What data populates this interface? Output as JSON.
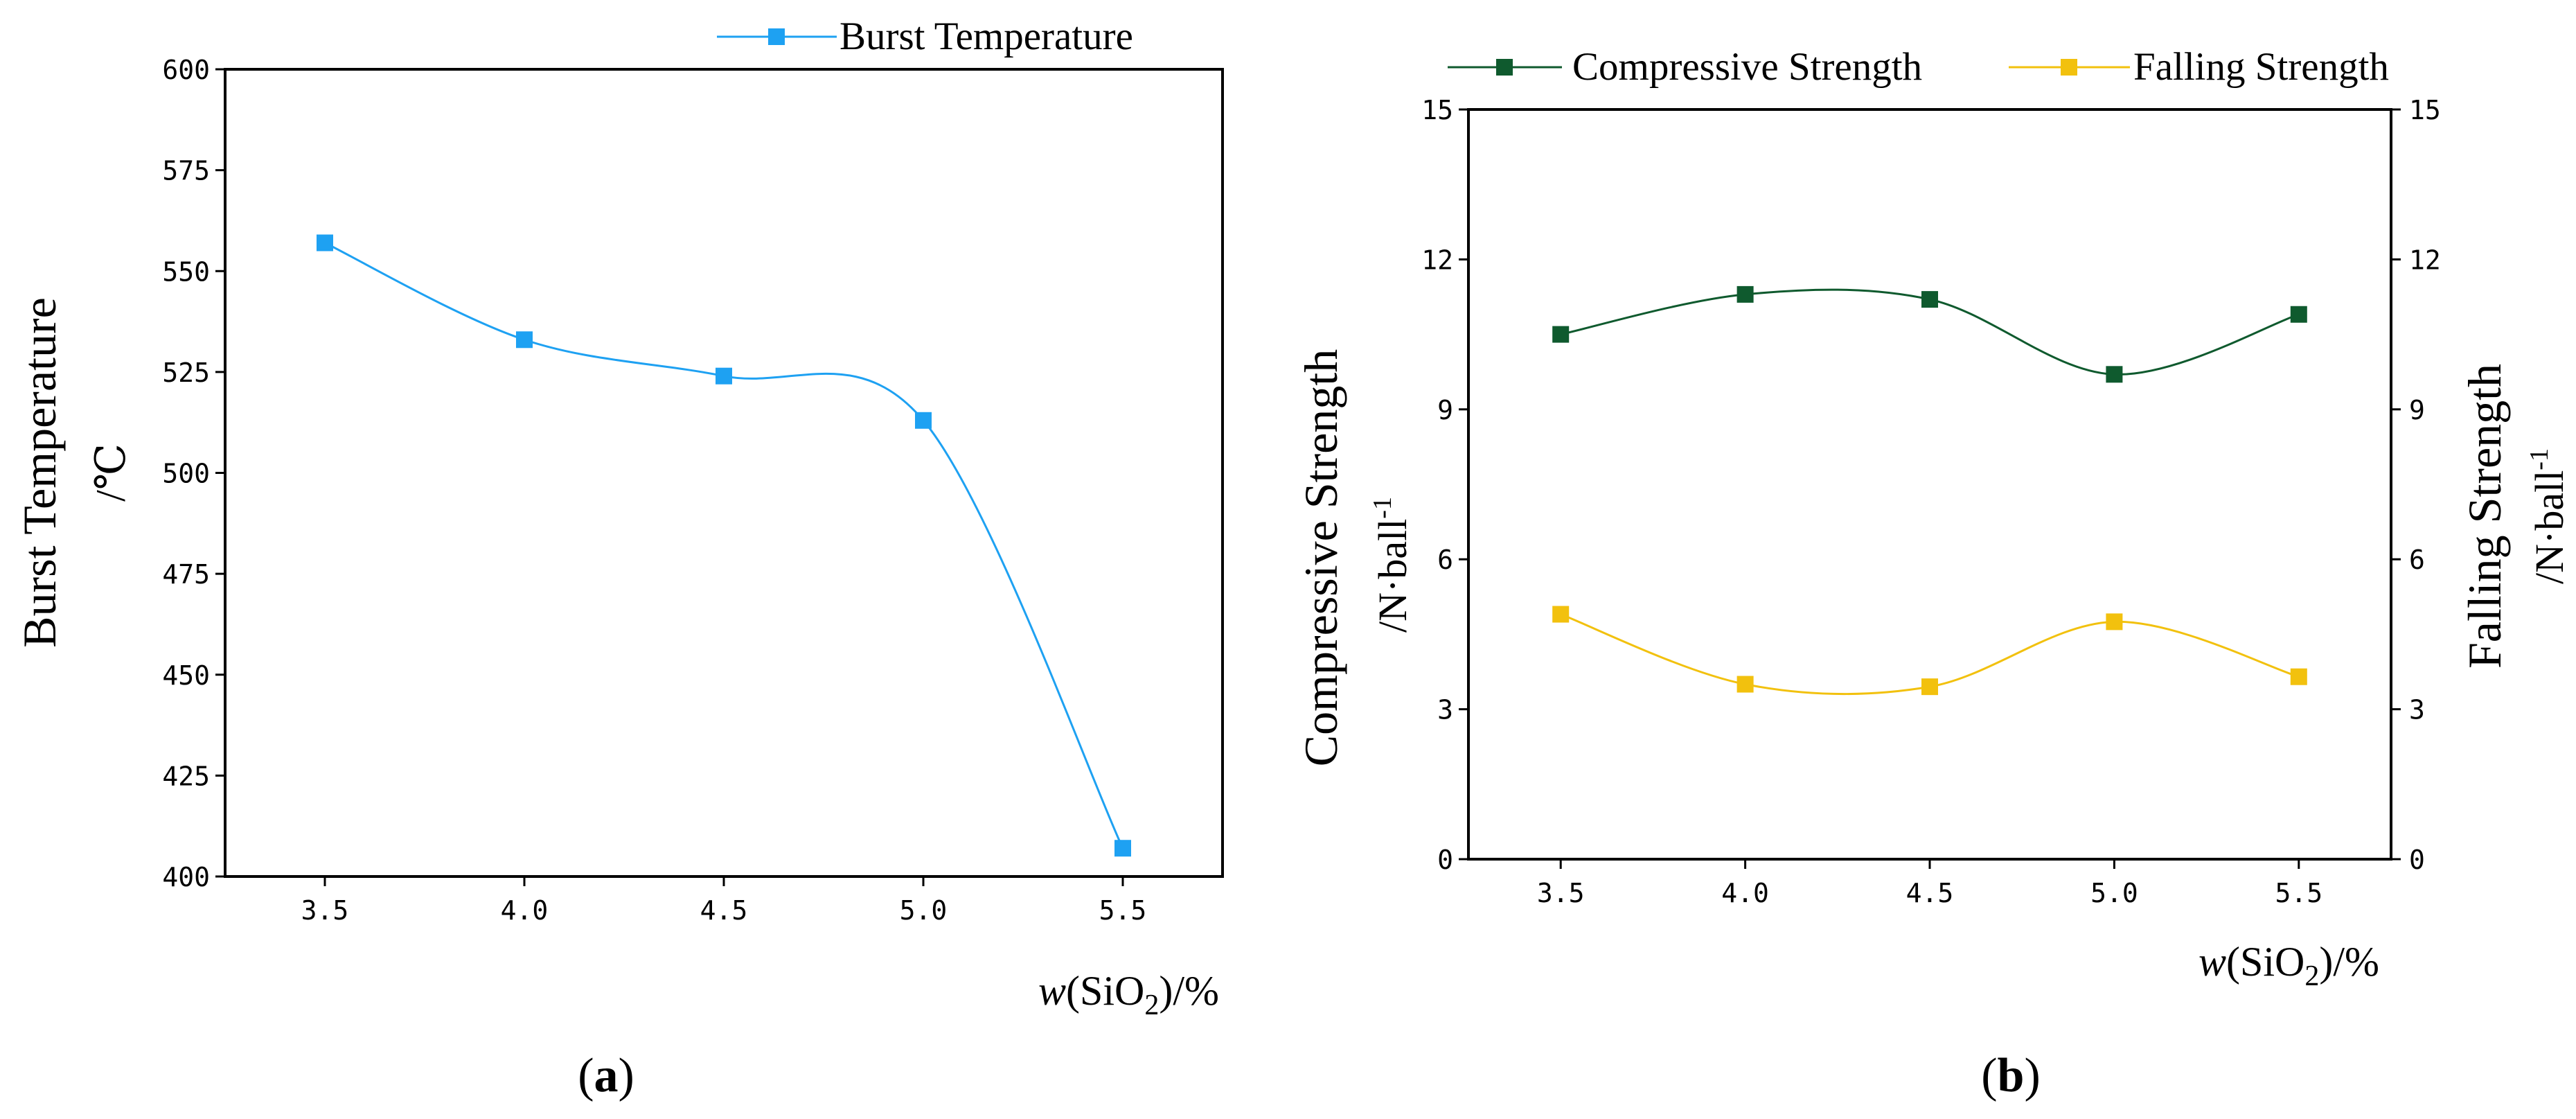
{
  "colors": {
    "burst": "#1ea1f2",
    "compressive": "#0f5a2e",
    "falling": "#f2c10e",
    "axis": "#000000"
  },
  "chart_data": [
    {
      "panel_label": "a",
      "type": "line",
      "smooth": true,
      "marker": "square",
      "x": [
        3.5,
        4.0,
        4.5,
        5.0,
        5.5
      ],
      "x_tick_labels": [
        "3.5",
        "4.0",
        "4.5",
        "5.0",
        "5.5"
      ],
      "xlim": [
        3.25,
        5.75
      ],
      "ylim": [
        400,
        600
      ],
      "y_ticks": [
        400,
        425,
        450,
        475,
        500,
        525,
        550,
        575,
        600
      ],
      "y_tick_labels": [
        "400",
        "425",
        "450",
        "475",
        "500",
        "525",
        "550",
        "575",
        "600"
      ],
      "ylabel_line1": "Burst Temperature",
      "ylabel_line2": "/℃",
      "xlabel_var": "w",
      "xlabel_open": "(SiO",
      "xlabel_sub": "2",
      "xlabel_close": ")/%",
      "legend_position": "top-right",
      "series": [
        {
          "name": "Burst Temperature",
          "values": [
            557,
            533,
            524,
            513,
            407
          ]
        }
      ]
    },
    {
      "panel_label": "b",
      "type": "line",
      "smooth": true,
      "marker": "square",
      "x": [
        3.5,
        4.0,
        4.5,
        5.0,
        5.5
      ],
      "x_tick_labels": [
        "3.5",
        "4.0",
        "4.5",
        "5.0",
        "5.5"
      ],
      "xlim": [
        3.25,
        5.75
      ],
      "ylim": [
        0,
        15
      ],
      "y_ticks": [
        0,
        3,
        6,
        9,
        12,
        15
      ],
      "y_tick_labels": [
        "0",
        "3",
        "6",
        "9",
        "12",
        "15"
      ],
      "ylabel_line1": "Compressive Strength",
      "ylabel_line2": "/N·ball",
      "ylabel_sup": "-1",
      "y2lim": [
        0,
        15
      ],
      "y2_ticks": [
        0,
        3,
        6,
        9,
        12,
        15
      ],
      "y2_tick_labels": [
        "0",
        "3",
        "6",
        "9",
        "12",
        "15"
      ],
      "y2label_line1": "Falling Strength",
      "y2label_line2": "/N·ball",
      "y2label_sup": "-1",
      "xlabel_var": "w",
      "xlabel_open": "(SiO",
      "xlabel_sub": "2",
      "xlabel_close": ")/%",
      "legend_position": "top",
      "series": [
        {
          "name": "Compressive Strength",
          "axis": "left",
          "values": [
            10.5,
            11.3,
            11.2,
            9.7,
            10.9
          ]
        },
        {
          "name": "Falling Strength",
          "axis": "right",
          "values": [
            4.9,
            3.5,
            3.45,
            4.75,
            3.65
          ]
        }
      ]
    }
  ]
}
